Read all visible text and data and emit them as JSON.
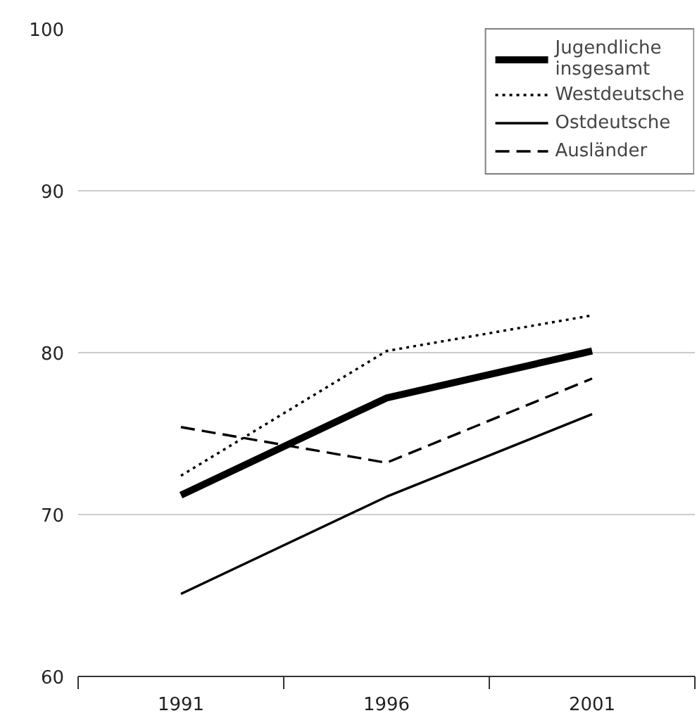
{
  "chart_data": {
    "type": "line",
    "categories": [
      "1991",
      "1996",
      "2001"
    ],
    "ylim": [
      60,
      100
    ],
    "yticks": [
      60,
      70,
      80,
      90,
      100
    ],
    "grid": "y",
    "legend": "top right",
    "series": [
      {
        "name": "Jugendliche\ninsgesamt",
        "color": "#000000",
        "line_style": "solid",
        "values": [
          71.2,
          77.2,
          80.1
        ]
      },
      {
        "name": "Westdeutsche",
        "color": "#000000",
        "line_style": "dotted",
        "values": [
          72.4,
          80.1,
          82.3
        ]
      },
      {
        "name": "Ostdeutsche",
        "color": "#000000",
        "line_style": "solid",
        "values": [
          65.1,
          71.1,
          76.2
        ]
      },
      {
        "name": "Ausländer",
        "color": "#000000",
        "line_style": "dashed",
        "values": [
          75.4,
          73.2,
          78.4
        ]
      }
    ]
  }
}
